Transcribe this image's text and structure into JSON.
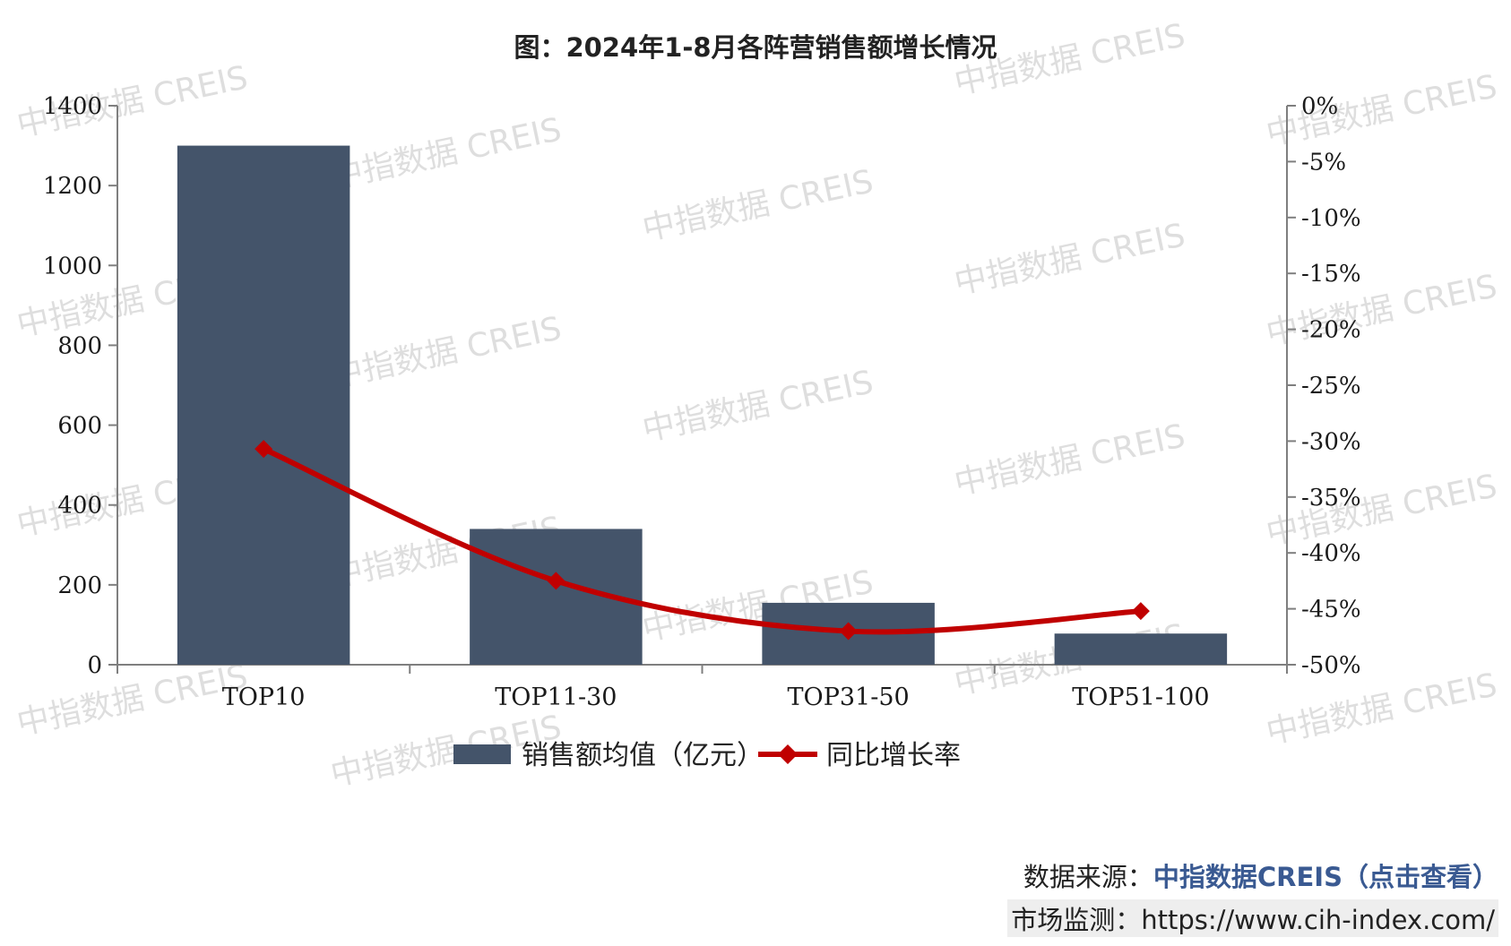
{
  "colors": {
    "bar": "#44546a",
    "line": "#c00000",
    "axis": "#7f7f7f",
    "watermark": "#c9c9c9"
  },
  "watermark_text": "中指数据 CREIS",
  "chart_data": {
    "type": "bar",
    "title": "图：2024年1-8月各阵营销售额增长情况",
    "categories": [
      "TOP10",
      "TOP11-30",
      "TOP31-50",
      "TOP51-100"
    ],
    "series": [
      {
        "name": "销售额均值（亿元）",
        "type": "bar",
        "axis": "left",
        "values": [
          1300,
          340,
          155,
          78
        ]
      },
      {
        "name": "同比增长率",
        "type": "line",
        "axis": "right",
        "values": [
          -30.7,
          -42.5,
          -47.0,
          -45.2
        ]
      }
    ],
    "y_left": {
      "ylim": [
        0,
        1400
      ],
      "ticks": [
        "0",
        "200",
        "400",
        "600",
        "800",
        "1000",
        "1200",
        "1400"
      ]
    },
    "y_right": {
      "ylim": [
        -50,
        0
      ],
      "ticks": [
        "0%",
        "-5%",
        "-10%",
        "-15%",
        "-20%",
        "-25%",
        "-30%",
        "-35%",
        "-40%",
        "-45%",
        "-50%"
      ]
    },
    "legend_position": "bottom"
  },
  "footer": {
    "source_label": "数据来源：",
    "source_brand": "中指数据CREIS",
    "source_link": "（点击查看）",
    "market_label": "市场监测：",
    "market_url": "https://www.cih-index.com/"
  }
}
